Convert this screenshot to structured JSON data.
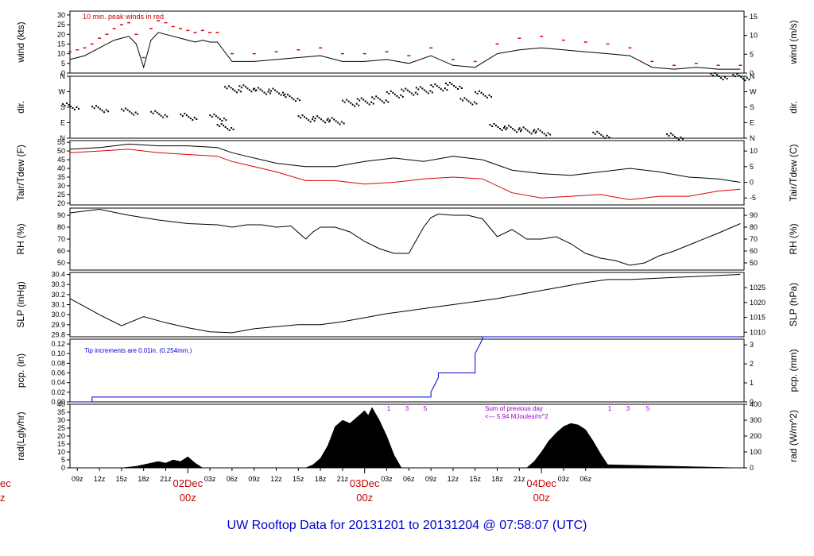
{
  "footer_title": "UW Rooftop Data for 20131201  to  20131204 @ 07:58:07  (UTC)",
  "colors": {
    "red": "#dd0000",
    "blue": "#0000cc",
    "purple": "#9900cc",
    "black": "#000000"
  },
  "x_axis": {
    "hour_ticks": [
      "09z",
      "12z",
      "15z",
      "18z",
      "21z",
      "03z",
      "06z",
      "09z",
      "12z",
      "15z",
      "18z",
      "21z",
      "03z",
      "06z",
      "09z",
      "12z",
      "15z",
      "18z",
      "21z",
      "03z",
      "06z"
    ],
    "day_labels": [
      {
        "date": "02Dec",
        "time": "00z"
      },
      {
        "date": "03Dec",
        "time": "00z"
      },
      {
        "date": "04Dec",
        "time": "00z"
      }
    ],
    "cut_off_left": {
      "date": "ec",
      "time": "z"
    }
  },
  "chart_data": [
    {
      "id": "wind",
      "type": "line",
      "ylabel_left": "wind (kts)",
      "ylabel_right": "wind (m/s)",
      "ylim": [
        0,
        32
      ],
      "left_ticks": [
        "0",
        "5",
        "10",
        "15",
        "20",
        "25",
        "30"
      ],
      "right_ticks": [
        "0",
        "5",
        "10",
        "15"
      ],
      "annotation": "10 min. peak winds in red",
      "x": [
        8,
        9,
        10,
        11,
        12,
        13,
        14,
        15,
        16,
        17,
        18,
        19,
        20,
        21,
        22,
        23,
        24,
        25,
        26,
        27,
        28,
        30,
        33,
        36,
        39,
        42,
        45,
        48,
        51,
        54,
        57,
        60,
        63,
        66,
        69,
        72,
        75,
        78,
        81,
        84,
        87,
        90,
        93,
        96,
        99
      ],
      "series": [
        {
          "values": [
            7,
            8,
            9,
            11,
            13,
            15,
            17,
            18,
            19,
            15,
            3,
            17,
            21,
            20,
            19,
            18,
            17,
            16,
            17,
            16,
            16,
            6,
            6,
            7,
            8,
            9,
            6,
            6,
            7,
            5,
            9,
            4,
            3,
            10,
            12,
            13,
            12,
            11,
            10,
            9,
            3,
            2,
            3,
            2,
            2
          ]
        },
        {
          "values": [
            11,
            12,
            13,
            15,
            18,
            20,
            23,
            25,
            26,
            20,
            8,
            23,
            27,
            26,
            24,
            23,
            22,
            21,
            22,
            21,
            21,
            10,
            10,
            11,
            12,
            13,
            10,
            10,
            11,
            9,
            13,
            7,
            6,
            15,
            18,
            19,
            17,
            16,
            15,
            13,
            6,
            4,
            5,
            4,
            4
          ]
        }
      ]
    },
    {
      "id": "direction",
      "type": "scatter",
      "ylabel_left": "dir.",
      "ylabel_right": "dir.",
      "yticks": [
        "N",
        "W",
        "S",
        "E",
        "N"
      ],
      "x": [
        8,
        12,
        16,
        20,
        24,
        28,
        29,
        30,
        32,
        34,
        36,
        38,
        40,
        42,
        44,
        46,
        48,
        50,
        52,
        54,
        56,
        58,
        60,
        62,
        64,
        66,
        68,
        70,
        72,
        80,
        90,
        96,
        99
      ],
      "values": [
        180,
        195,
        210,
        225,
        240,
        245,
        300,
        80,
        75,
        90,
        95,
        130,
        250,
        255,
        265,
        160,
        150,
        140,
        110,
        95,
        85,
        70,
        60,
        150,
        110,
        300,
        310,
        320,
        330,
        345,
        355,
        5,
        10
      ]
    },
    {
      "id": "temperature",
      "type": "line",
      "ylabel_left": "Tair/Tdew (F)",
      "ylabel_right": "Tair/Tdew (C)",
      "ylim": [
        19,
        56
      ],
      "left_ticks": [
        "20",
        "25",
        "30",
        "35",
        "40",
        "45",
        "50",
        "55"
      ],
      "right_ticks": [
        "-5",
        "0",
        "5",
        "10"
      ],
      "x": [
        8,
        12,
        16,
        20,
        24,
        28,
        30,
        32,
        34,
        36,
        40,
        44,
        48,
        52,
        56,
        60,
        64,
        68,
        72,
        76,
        80,
        84,
        88,
        92,
        96,
        99
      ],
      "series": [
        {
          "name": "Tair",
          "color": "#000000",
          "values": [
            51,
            52,
            54,
            53,
            53,
            52,
            49,
            47,
            45,
            43,
            41,
            41,
            44,
            46,
            44,
            47,
            45,
            39,
            37,
            36,
            38,
            40,
            38,
            35,
            34,
            32
          ]
        },
        {
          "name": "Tdew",
          "color": "#dd0000",
          "values": [
            49,
            50,
            51,
            49,
            48,
            47,
            44,
            42,
            40,
            38,
            33,
            33,
            31,
            32,
            34,
            35,
            34,
            26,
            23,
            24,
            25,
            22,
            24,
            24,
            27,
            28
          ]
        }
      ]
    },
    {
      "id": "rh",
      "type": "line",
      "ylabel_left": "RH (%)",
      "ylabel_right": "RH (%)",
      "ylim": [
        44,
        96
      ],
      "left_ticks": [
        "50",
        "60",
        "70",
        "80",
        "90"
      ],
      "right_ticks": [
        "50",
        "60",
        "70",
        "80",
        "90"
      ],
      "x": [
        8,
        12,
        16,
        20,
        24,
        28,
        30,
        32,
        34,
        36,
        38,
        40,
        41,
        42,
        44,
        46,
        48,
        50,
        52,
        54,
        56,
        57,
        58,
        60,
        62,
        64,
        66,
        68,
        70,
        72,
        74,
        76,
        78,
        80,
        82,
        84,
        86,
        88,
        90,
        92,
        96,
        99
      ],
      "values": [
        92,
        95,
        90,
        86,
        83,
        82,
        80,
        82,
        82,
        80,
        81,
        70,
        76,
        80,
        80,
        76,
        68,
        62,
        58,
        58,
        80,
        88,
        91,
        90,
        90,
        87,
        72,
        78,
        70,
        70,
        72,
        66,
        58,
        54,
        52,
        48,
        50,
        56,
        60,
        65,
        75,
        83
      ]
    },
    {
      "id": "slp",
      "type": "line",
      "ylabel_left": "SLP (inHg)",
      "ylabel_right": "SLP (hPa)",
      "ylim": [
        29.78,
        30.42
      ],
      "left_ticks": [
        "29.8",
        "29.9",
        "30.0",
        "30.1",
        "30.2",
        "30.3",
        "30.4"
      ],
      "right_ticks": [
        "1010",
        "1015",
        "1020",
        "1025"
      ],
      "x": [
        8,
        12,
        15,
        18,
        21,
        24,
        27,
        30,
        33,
        36,
        39,
        42,
        45,
        48,
        51,
        54,
        57,
        60,
        63,
        66,
        69,
        72,
        75,
        78,
        81,
        84,
        87,
        90,
        93,
        96,
        99
      ],
      "values": [
        30.16,
        30.0,
        29.89,
        29.98,
        29.92,
        29.87,
        29.83,
        29.82,
        29.86,
        29.88,
        29.9,
        29.9,
        29.93,
        29.97,
        30.01,
        30.04,
        30.07,
        30.1,
        30.13,
        30.16,
        30.2,
        30.24,
        30.28,
        30.32,
        30.35,
        30.35,
        30.36,
        30.37,
        30.38,
        30.39,
        30.4
      ]
    },
    {
      "id": "precipitation",
      "type": "line",
      "ylabel_left": "pcp. (in)",
      "ylabel_right": "pcp. (mm)",
      "ylim": [
        0,
        0.13
      ],
      "left_ticks": [
        "0.00",
        "0.02",
        "0.04",
        "0.06",
        "0.08",
        "0.10",
        "0.12"
      ],
      "right_ticks": [
        "0",
        "1",
        "2",
        "3"
      ],
      "annotation": "Tip increments are 0.01in. (0.254mm.)",
      "x": [
        8,
        11,
        11,
        57,
        57,
        58,
        58,
        63,
        63,
        64,
        64,
        99
      ],
      "values": [
        0,
        0,
        0.01,
        0.01,
        0.02,
        0.05,
        0.06,
        0.06,
        0.1,
        0.13,
        0.135,
        0.135
      ]
    },
    {
      "id": "radiation",
      "type": "area",
      "ylabel_left": "rad(Lgly/hr)",
      "ylabel_right": "rad (W/m^2)",
      "ylim": [
        0,
        40
      ],
      "left_ticks": [
        "0",
        "5",
        "10",
        "15",
        "20",
        "25",
        "30",
        "35",
        "40"
      ],
      "right_ticks": [
        "0",
        "100",
        "200",
        "300",
        "400"
      ],
      "day_markers": [
        "1",
        "3",
        "5",
        "1",
        "3",
        "5"
      ],
      "annotation_line1": "Sum of previous day",
      "annotation_line2": "<--- 5.94 MJoules/m^2",
      "x": [
        8,
        15,
        16,
        17,
        18,
        19,
        20,
        21,
        22,
        23,
        24,
        25,
        26,
        40,
        41,
        42,
        43,
        43.5,
        44,
        45,
        46,
        47,
        48,
        48.5,
        49,
        50,
        51,
        52,
        53,
        70,
        71,
        72,
        73,
        74,
        75,
        76,
        77,
        78,
        79,
        80,
        81,
        99
      ],
      "values": [
        0,
        0,
        0.5,
        1,
        2,
        3,
        4,
        3,
        5,
        4,
        7,
        3,
        0,
        0,
        2,
        6,
        14,
        20,
        26,
        30,
        28,
        32,
        36,
        33,
        38,
        30,
        20,
        8,
        0,
        0,
        4,
        10,
        17,
        22,
        26,
        28,
        27,
        24,
        17,
        9,
        2,
        0
      ]
    }
  ]
}
